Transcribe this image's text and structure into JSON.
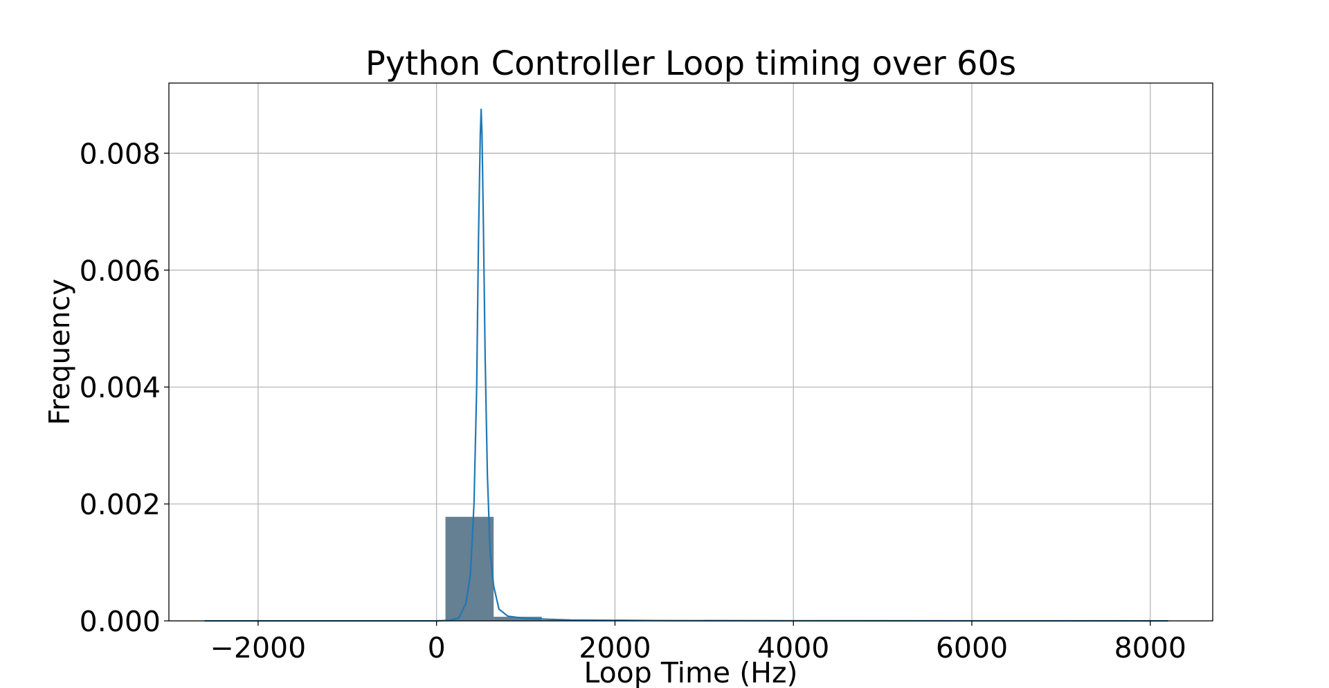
{
  "chart_data": {
    "type": "histogram",
    "title": "Python Controller Loop timing over 60s",
    "xlabel": "Loop Time (Hz)",
    "ylabel": "Frequency",
    "xlim": [
      -3000,
      8700
    ],
    "ylim": [
      0,
      0.0092
    ],
    "x_ticks": [
      {
        "value": -2000,
        "label": "−2000"
      },
      {
        "value": 0,
        "label": "0"
      },
      {
        "value": 2000,
        "label": "2000"
      },
      {
        "value": 4000,
        "label": "4000"
      },
      {
        "value": 6000,
        "label": "6000"
      },
      {
        "value": 8000,
        "label": "8000"
      }
    ],
    "y_ticks": [
      {
        "value": 0,
        "label": "0.000"
      },
      {
        "value": 0.002,
        "label": "0.002"
      },
      {
        "value": 0.004,
        "label": "0.004"
      },
      {
        "value": 0.006,
        "label": "0.006"
      },
      {
        "value": 0.008,
        "label": "0.008"
      }
    ],
    "grid": true,
    "bars": [
      {
        "x0": 100,
        "x1": 640,
        "value": 0.00178
      },
      {
        "x0": 640,
        "x1": 1180,
        "value": 7e-05
      },
      {
        "x0": 1180,
        "x1": 1720,
        "value": 1.5e-05
      },
      {
        "x0": 1720,
        "x1": 2260,
        "value": 6e-06
      },
      {
        "x0": 2260,
        "x1": 2800,
        "value": 4e-06
      },
      {
        "x0": 2800,
        "x1": 3340,
        "value": 2e-06
      },
      {
        "x0": 3340,
        "x1": 3880,
        "value": 1e-06
      }
    ],
    "kde_curve": [
      {
        "x": -2600,
        "y": 0
      },
      {
        "x": 0,
        "y": 0
      },
      {
        "x": 150,
        "y": 1e-05
      },
      {
        "x": 250,
        "y": 5e-05
      },
      {
        "x": 330,
        "y": 0.0003
      },
      {
        "x": 380,
        "y": 0.0008
      },
      {
        "x": 420,
        "y": 0.002
      },
      {
        "x": 450,
        "y": 0.004
      },
      {
        "x": 470,
        "y": 0.0065
      },
      {
        "x": 490,
        "y": 0.0083
      },
      {
        "x": 500,
        "y": 0.00875
      },
      {
        "x": 510,
        "y": 0.0083
      },
      {
        "x": 525,
        "y": 0.0068
      },
      {
        "x": 545,
        "y": 0.0045
      },
      {
        "x": 570,
        "y": 0.0025
      },
      {
        "x": 600,
        "y": 0.0012
      },
      {
        "x": 640,
        "y": 0.0006
      },
      {
        "x": 700,
        "y": 0.0002
      },
      {
        "x": 800,
        "y": 8e-05
      },
      {
        "x": 1000,
        "y": 4e-05
      },
      {
        "x": 1500,
        "y": 1.5e-05
      },
      {
        "x": 2500,
        "y": 5e-06
      },
      {
        "x": 4000,
        "y": 2e-06
      },
      {
        "x": 6000,
        "y": 1e-06
      },
      {
        "x": 8200,
        "y": 0
      }
    ],
    "bar_color": "#3e5f78",
    "bar_opacity": 0.8,
    "line_color": "#1f77b4"
  }
}
